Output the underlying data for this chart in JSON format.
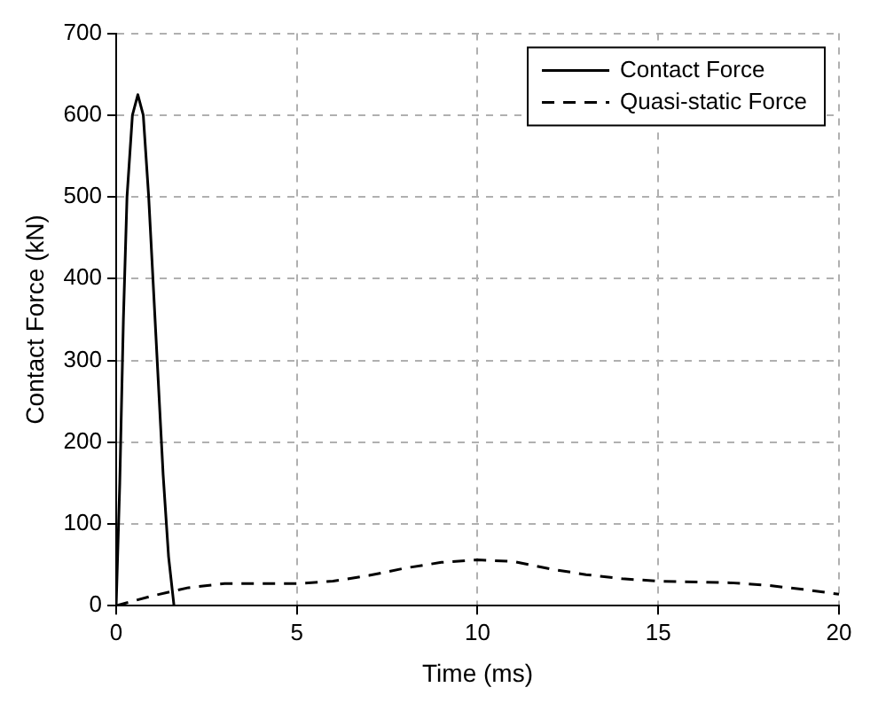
{
  "chart_data": {
    "type": "line",
    "xlabel": "Time (ms)",
    "ylabel": "Contact Force (kN)",
    "xlim": [
      0,
      20
    ],
    "xticks": [
      0,
      5,
      10,
      15,
      20
    ],
    "ylim": [
      0,
      700
    ],
    "yticks": [
      0,
      100,
      200,
      300,
      400,
      500,
      600,
      700
    ],
    "grid": true,
    "legend": "top right",
    "marker": "none",
    "series": [
      {
        "name": "Contact Force",
        "color": "#000000",
        "line_style": "solid",
        "x": [
          0,
          0.1,
          0.2,
          0.3,
          0.45,
          0.6,
          0.75,
          0.9,
          1.1,
          1.3,
          1.45,
          1.6
        ],
        "values": [
          0,
          150,
          350,
          500,
          600,
          625,
          600,
          500,
          330,
          160,
          60,
          0
        ]
      },
      {
        "name": "Quasi-static Force",
        "color": "#000000",
        "line_style": "dashed",
        "x": [
          0,
          1,
          2,
          3,
          5,
          6,
          7,
          8,
          9,
          10,
          11,
          12,
          13,
          14,
          15,
          17,
          18,
          19,
          20
        ],
        "values": [
          0,
          12,
          22,
          27,
          27,
          30,
          37,
          46,
          53,
          56,
          54,
          45,
          38,
          33,
          30,
          28,
          25,
          20,
          14
        ]
      }
    ]
  }
}
